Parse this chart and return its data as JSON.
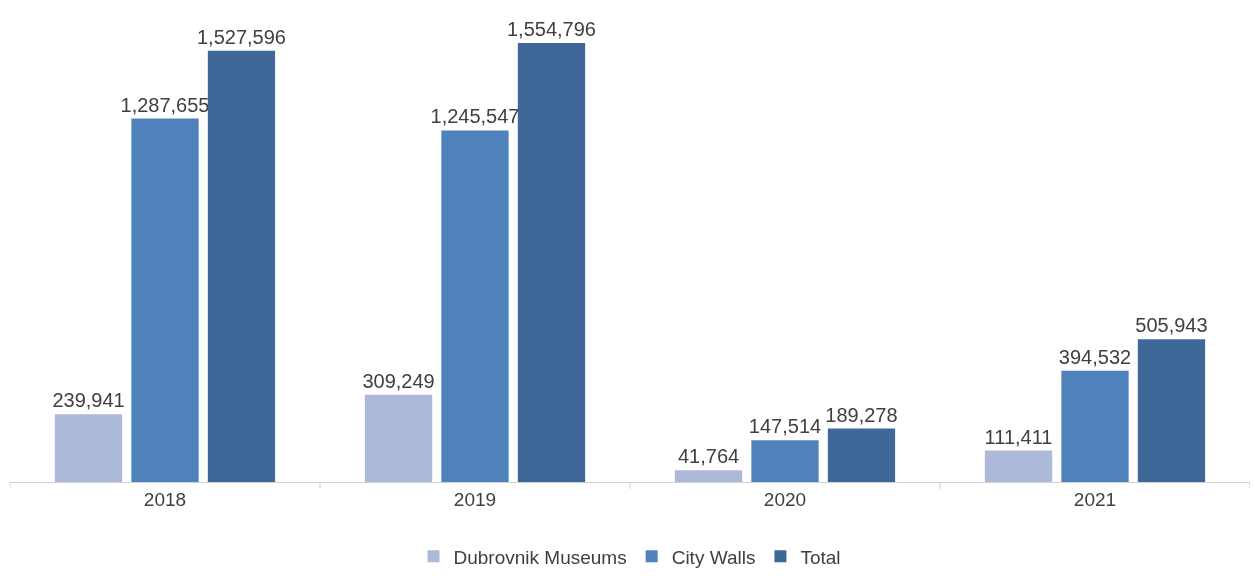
{
  "chart_data": {
    "type": "bar",
    "categories": [
      "2018",
      "2019",
      "2020",
      "2021"
    ],
    "series": [
      {
        "name": "Dubrovnik Museums",
        "color": "#adb9d8",
        "values": [
          239941,
          309249,
          41764,
          111411
        ],
        "value_labels": [
          "239,941",
          "309,249",
          "41,764",
          "111,411"
        ]
      },
      {
        "name": "City Walls",
        "color": "#4f81bd",
        "values": [
          1287655,
          1245547,
          147514,
          394532
        ],
        "value_labels": [
          "1,287,655",
          "1,245,547",
          "147,514",
          "394,532"
        ]
      },
      {
        "name": "Total",
        "color": "#3f6899",
        "values": [
          1527596,
          1554796,
          189278,
          505943
        ],
        "value_labels": [
          "1,527,596",
          "1,554,796",
          "189,278",
          "505,943"
        ]
      }
    ],
    "legend": "bottom"
  }
}
